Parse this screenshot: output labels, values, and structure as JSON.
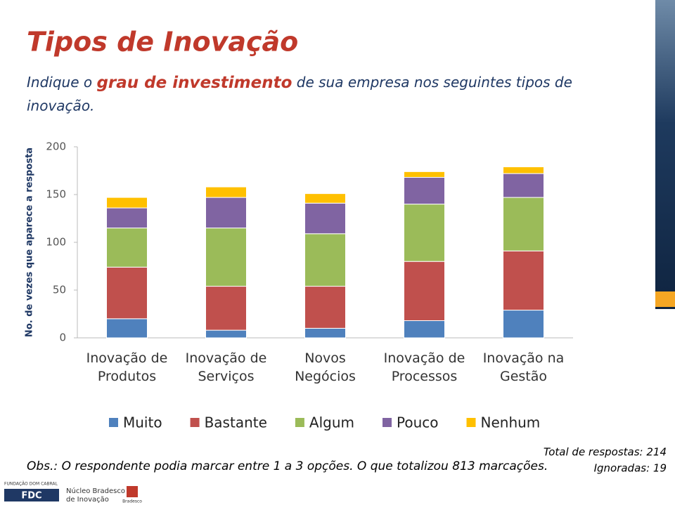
{
  "header": {
    "title": "Tipos de Inovação",
    "subtitle": [
      "Indique o ",
      "grau de investimento",
      " de sua empresa nos seguintes tipos de inovação."
    ]
  },
  "chart_data": {
    "type": "stacked_bar",
    "y_label": "No. de vezes que aparece a resposta",
    "categories": [
      "Inovação de Produtos",
      "Inovação de Serviços",
      "Novos Negócios",
      "Inovação de Processos",
      "Inovação na Gestão"
    ],
    "series": [
      {
        "name": "Muito",
        "color": "#4f81bd",
        "values": [
          20,
          8,
          10,
          18,
          29
        ]
      },
      {
        "name": "Bastante",
        "color": "#c0504d",
        "values": [
          54,
          46,
          44,
          62,
          62
        ]
      },
      {
        "name": "Algum",
        "color": "#9bbb59",
        "values": [
          41,
          61,
          55,
          60,
          56
        ]
      },
      {
        "name": "Pouco",
        "color": "#8064a2",
        "values": [
          21,
          32,
          32,
          28,
          25
        ]
      },
      {
        "name": "Nenhum",
        "color": "#ffc000",
        "values": [
          11,
          11,
          10,
          6,
          7
        ]
      }
    ],
    "ylim": [
      0,
      200
    ],
    "yticks": [
      0,
      50,
      100,
      150,
      200
    ],
    "grid": false,
    "legend": "bottom"
  },
  "notes": {
    "obs_label": "Obs.:",
    "obs": " O respondente podia marcar entre 1 a 3 opções. O que totalizou 813 marcações.",
    "total": "Total de respostas: 214",
    "ignored": "Ignoradas: 19"
  },
  "footer": {
    "foundation": "FUNDAÇÃO DOM CABRAL",
    "fdc": "FDC",
    "nucleo": [
      "Núcleo Bradesco",
      "de Inovação"
    ],
    "bradesco": "Bradesco"
  }
}
